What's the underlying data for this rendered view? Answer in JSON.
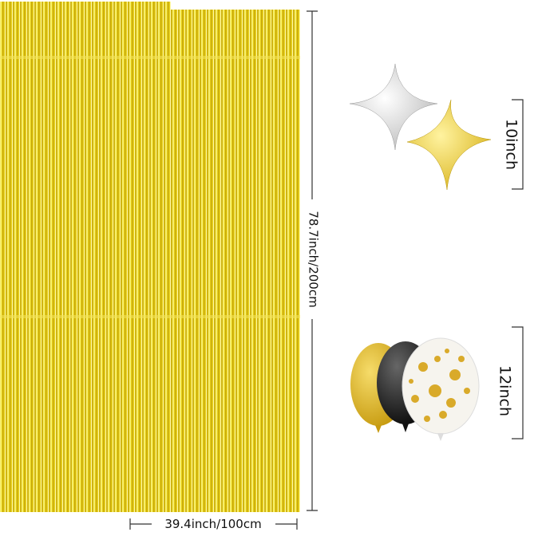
{
  "dimensions": {
    "curtain_height": "78.7inch/200cm",
    "curtain_width": "39.4inch/100cm",
    "star_balloon_size": "10inch",
    "round_balloon_size": "12inch"
  }
}
